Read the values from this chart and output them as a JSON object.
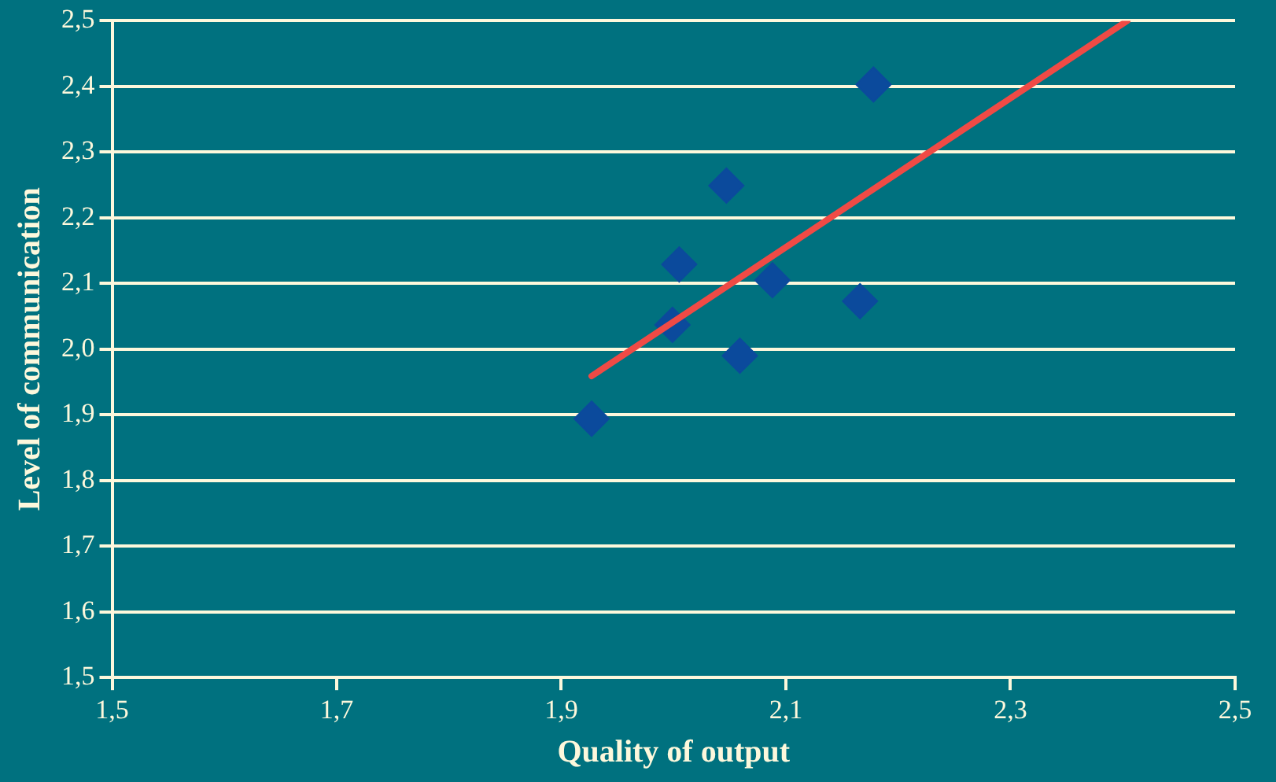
{
  "chart_data": {
    "type": "scatter",
    "xlabel": "Quality of output",
    "ylabel": "Level of communication",
    "x": [
      1.927,
      1.999,
      2.005,
      2.047,
      2.059,
      2.088,
      2.166,
      2.178
    ],
    "series": [
      {
        "color": "#0b4a9c",
        "marker": "diamond",
        "values": [
          1.894,
          2.037,
          2.129,
          2.249,
          1.99,
          2.105,
          2.073,
          2.403
        ]
      },
      {
        "type": "line",
        "marker": "none",
        "color": "#f04a45",
        "x": [
          1.927,
          2.404
        ],
        "values": [
          1.959,
          2.5
        ]
      }
    ],
    "xlim": [
      1.5,
      2.5
    ],
    "xticks": [
      {
        "value": 1.5,
        "label": "1,5"
      },
      {
        "value": 1.7,
        "label": "1,7"
      },
      {
        "value": 1.9,
        "label": "1,9"
      },
      {
        "value": 2.1,
        "label": "2,1"
      },
      {
        "value": 2.3,
        "label": "2,3"
      },
      {
        "value": 2.5,
        "label": "2,5"
      }
    ],
    "ylim": [
      1.5,
      2.5
    ],
    "yticks": [
      {
        "value": 1.5,
        "label": "1,5"
      },
      {
        "value": 1.6,
        "label": "1,6"
      },
      {
        "value": 1.7,
        "label": "1,7"
      },
      {
        "value": 1.8,
        "label": "1,8"
      },
      {
        "value": 1.9,
        "label": "1,9"
      },
      {
        "value": 2.0,
        "label": "2,0"
      },
      {
        "value": 2.1,
        "label": "2,1"
      },
      {
        "value": 2.2,
        "label": "2,2"
      },
      {
        "value": 2.3,
        "label": "2,3"
      },
      {
        "value": 2.4,
        "label": "2,4"
      },
      {
        "value": 2.5,
        "label": "2,5"
      }
    ],
    "grid": "y",
    "legend": false
  }
}
